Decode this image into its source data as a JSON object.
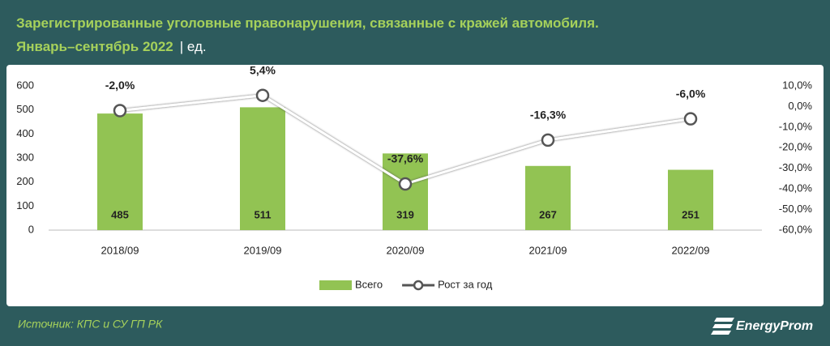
{
  "chart_data": {
    "type": "bar-line",
    "title": "Зарегистрированные уголовные правонарушения, связанные с кражей автомобиля.",
    "subtitle": "Январь–сентябрь 2022",
    "unit": "| ед.",
    "source": "Источник: КПС и СУ ГП РК",
    "brand": "EnergyProm",
    "categories": [
      "2018/09",
      "2019/09",
      "2020/09",
      "2021/09",
      "2022/09"
    ],
    "series": [
      {
        "name": "Всего",
        "type": "bar",
        "color": "#92c353",
        "values": [
          485,
          511,
          319,
          267,
          251
        ]
      },
      {
        "name": "Рост за год",
        "type": "line",
        "axis": "y2",
        "color": "#ffffff",
        "values": [
          -2.0,
          5.4,
          -37.6,
          -16.3,
          -6.0
        ],
        "value_labels": [
          "-2,0%",
          "5,4%",
          "-37,6%",
          "-16,3%",
          "-6,0%"
        ]
      }
    ],
    "ylim": [
      0,
      600
    ],
    "yticks": [
      0,
      100,
      200,
      300,
      400,
      500,
      600
    ],
    "y2lim": [
      -60,
      10
    ],
    "y2ticks": [
      {
        "value": -60,
        "label": "-60,0%"
      },
      {
        "value": -50,
        "label": "-50,0%"
      },
      {
        "value": -40,
        "label": "-40,0%"
      },
      {
        "value": -30,
        "label": "-30,0%"
      },
      {
        "value": -20,
        "label": "-20,0%"
      },
      {
        "value": -10,
        "label": "-10,0%"
      },
      {
        "value": 0,
        "label": "0,0%"
      },
      {
        "value": 10,
        "label": "10,0%"
      }
    ],
    "grid": false,
    "legend": "bottom"
  }
}
